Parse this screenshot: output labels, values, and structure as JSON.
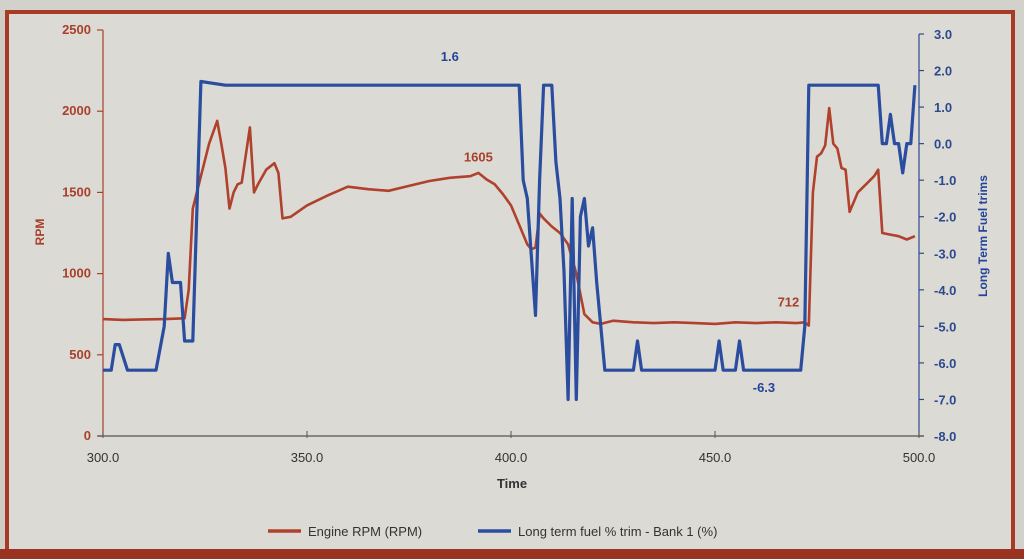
{
  "chart_data": {
    "type": "line",
    "title": "",
    "xlabel": "Time",
    "ylabel_left": "RPM",
    "ylabel_right": "Long Term Fuel trims",
    "xlim": [
      300.0,
      500.0
    ],
    "ylim_left": [
      0,
      2500
    ],
    "ylim_right": [
      -8.0,
      3.0
    ],
    "x_ticks": [
      "300.0",
      "350.0",
      "400.0",
      "450.0",
      "500.0"
    ],
    "y_left_ticks": [
      "0",
      "500",
      "1000",
      "1500",
      "2000",
      "2500"
    ],
    "y_right_ticks": [
      "3.0",
      "2.0",
      "1.0",
      "0.0",
      "-1.0",
      "-2.0",
      "-3.0",
      "-4.0",
      "-5.0",
      "-6.0",
      "-7.0",
      "-8.0"
    ],
    "grid": false,
    "legend_position": "bottom",
    "series": [
      {
        "name": "Engine RPM (RPM)",
        "axis": "left",
        "color": "#b0412c",
        "x": [
          300,
          305,
          310,
          315,
          320,
          321,
          322,
          324,
          326,
          328,
          329,
          330,
          331,
          332,
          333,
          334,
          336,
          337,
          338,
          340,
          342,
          343,
          344,
          346,
          350,
          355,
          360,
          365,
          370,
          375,
          380,
          385,
          390,
          392,
          394,
          396,
          398,
          400,
          402,
          404,
          405,
          406,
          407,
          408,
          410,
          412,
          414,
          416,
          418,
          420,
          422,
          425,
          430,
          435,
          440,
          445,
          450,
          455,
          460,
          465,
          470,
          472,
          473,
          474,
          475,
          476,
          477,
          478,
          479,
          480,
          481,
          482,
          483,
          485,
          487,
          489,
          490,
          491,
          493,
          495,
          497,
          499
        ],
        "values": [
          720,
          715,
          718,
          720,
          725,
          900,
          1400,
          1600,
          1800,
          1940,
          1800,
          1650,
          1400,
          1500,
          1550,
          1560,
          1900,
          1500,
          1550,
          1640,
          1680,
          1620,
          1340,
          1350,
          1420,
          1480,
          1535,
          1520,
          1510,
          1540,
          1570,
          1590,
          1600,
          1620,
          1580,
          1550,
          1490,
          1420,
          1300,
          1180,
          1150,
          1160,
          1370,
          1340,
          1290,
          1250,
          1180,
          1000,
          750,
          700,
          690,
          710,
          700,
          695,
          700,
          695,
          690,
          700,
          695,
          700,
          695,
          700,
          680,
          1500,
          1720,
          1740,
          1790,
          2020,
          1800,
          1770,
          1650,
          1640,
          1380,
          1500,
          1550,
          1600,
          1640,
          1250,
          1240,
          1230,
          1210,
          1230
        ],
        "annotations": [
          {
            "x": 392,
            "y": 1605,
            "text": "1605"
          },
          {
            "x": 468,
            "y": 712,
            "text": "712"
          }
        ]
      },
      {
        "name": "Long term fuel % trim - Bank 1 (%)",
        "axis": "right",
        "color": "#2a4d9f",
        "x": [
          300,
          302,
          303,
          304,
          306,
          310,
          313,
          315,
          316,
          317,
          318,
          319,
          320,
          321,
          322,
          324,
          330,
          350,
          400,
          402,
          403,
          404,
          406,
          407,
          408,
          409,
          410,
          411,
          412,
          413,
          414,
          415,
          416,
          417,
          418,
          419,
          420,
          421,
          422,
          423,
          424,
          426,
          430,
          431,
          432,
          433,
          440,
          450,
          451,
          452,
          453,
          455,
          456,
          457,
          460,
          465,
          470,
          471,
          472,
          473,
          476,
          480,
          485,
          490,
          491,
          492,
          493,
          494,
          495,
          496,
          497,
          498,
          499
        ],
        "values": [
          -6.2,
          -6.2,
          -5.5,
          -5.5,
          -6.2,
          -6.2,
          -6.2,
          -5.0,
          -3.0,
          -3.8,
          -3.8,
          -3.8,
          -5.4,
          -5.4,
          -5.4,
          1.7,
          1.6,
          1.6,
          1.6,
          1.6,
          -1.0,
          -1.5,
          -4.7,
          -1.0,
          1.6,
          1.6,
          1.6,
          -0.5,
          -1.5,
          -3.5,
          -7.0,
          -1.5,
          -7.0,
          -2.0,
          -1.5,
          -2.8,
          -2.3,
          -3.8,
          -5.0,
          -6.2,
          -6.2,
          -6.2,
          -6.2,
          -5.4,
          -6.2,
          -6.2,
          -6.2,
          -6.2,
          -5.4,
          -6.2,
          -6.2,
          -6.2,
          -5.4,
          -6.2,
          -6.2,
          -6.2,
          -6.2,
          -6.2,
          -5.0,
          1.6,
          1.6,
          1.6,
          1.6,
          1.6,
          0.0,
          0.0,
          0.8,
          0.0,
          0.0,
          -0.8,
          0.0,
          0.0,
          1.6
        ],
        "annotations": [
          {
            "x": 385,
            "y": 1.6,
            "text": "1.6"
          },
          {
            "x": 462,
            "y": -6.3,
            "text": "-6.3"
          }
        ]
      }
    ]
  },
  "legend": {
    "items": [
      {
        "label": "Engine RPM (RPM)",
        "color": "#b0412c"
      },
      {
        "label": "Long term fuel % trim - Bank 1 (%)",
        "color": "#2a4d9f"
      }
    ]
  }
}
